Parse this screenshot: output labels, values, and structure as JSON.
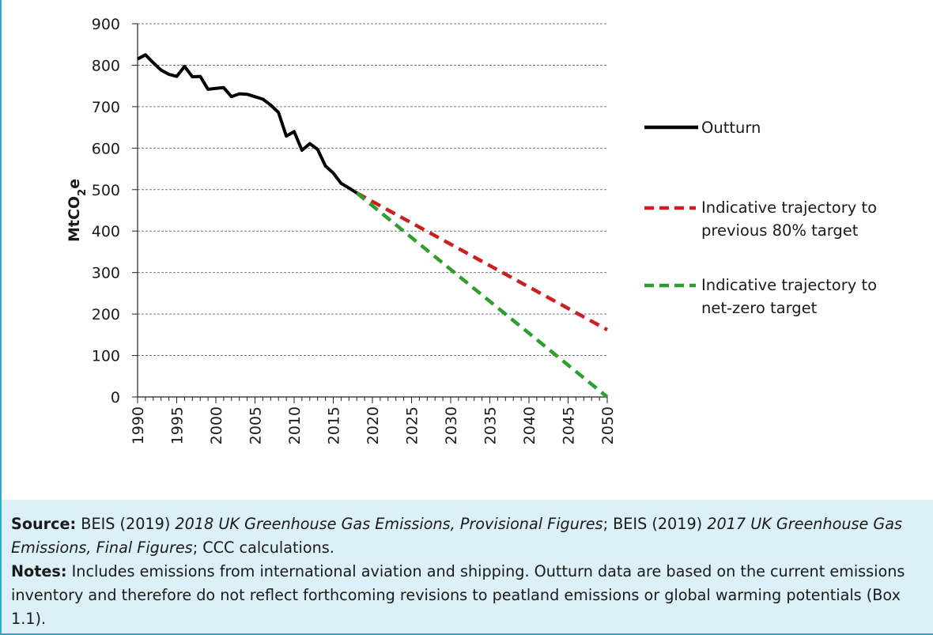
{
  "chart_data": {
    "type": "line",
    "ylabel": "MtCO2e",
    "ylim": [
      0,
      900
    ],
    "xlim": [
      1990,
      2050
    ],
    "yticks": [
      "0",
      "100",
      "200",
      "300",
      "400",
      "500",
      "600",
      "700",
      "800",
      "900"
    ],
    "xticks": [
      "1990",
      "1995",
      "2000",
      "2005",
      "2010",
      "2015",
      "2020",
      "2025",
      "2030",
      "2035",
      "2040",
      "2045",
      "2050"
    ],
    "grid": true,
    "legend_position": "right",
    "series": [
      {
        "name": "Outturn",
        "color": "#000000",
        "style": "solid",
        "x": [
          1990,
          1991,
          1992,
          1993,
          1994,
          1995,
          1996,
          1997,
          1998,
          1999,
          2000,
          2001,
          2002,
          2003,
          2004,
          2005,
          2006,
          2007,
          2008,
          2009,
          2010,
          2011,
          2012,
          2013,
          2014,
          2015,
          2016,
          2017,
          2018
        ],
        "y": [
          815,
          825,
          806,
          788,
          778,
          773,
          797,
          772,
          773,
          742,
          744,
          746,
          724,
          731,
          730,
          724,
          718,
          704,
          686,
          629,
          640,
          595,
          611,
          597,
          557,
          540,
          515,
          504,
          492
        ]
      },
      {
        "name": "Indicative trajectory to previous 80% target",
        "color": "#cc1f1f",
        "style": "dashed",
        "x": [
          2018,
          2050
        ],
        "y": [
          492,
          162
        ]
      },
      {
        "name": "Indicative trajectory to net-zero target",
        "color": "#2e9e2e",
        "style": "dashed",
        "x": [
          2018,
          2050
        ],
        "y": [
          492,
          0
        ]
      }
    ],
    "legend": {
      "outturn": "Outturn",
      "red_line1": "Indicative trajectory to",
      "red_line2": "previous 80% target",
      "green_line1": "Indicative trajectory to",
      "green_line2": "net-zero target"
    }
  },
  "footer": {
    "source_label": "Source:",
    "source_text1": " BEIS (2019) ",
    "source_italic1": "2018 UK Greenhouse Gas Emissions, Provisional Figures",
    "source_text2": "; BEIS (2019) ",
    "source_italic2": "2017 UK Greenhouse Gas Emissions, Final Figures",
    "source_text3": "; CCC calculations.",
    "notes_label": "Notes:",
    "notes_text": " Includes emissions from international aviation and shipping. Outturn data are based on the current emissions inventory and therefore do not reflect forthcoming revisions to peatland emissions or global warming potentials (Box 1.1)."
  }
}
